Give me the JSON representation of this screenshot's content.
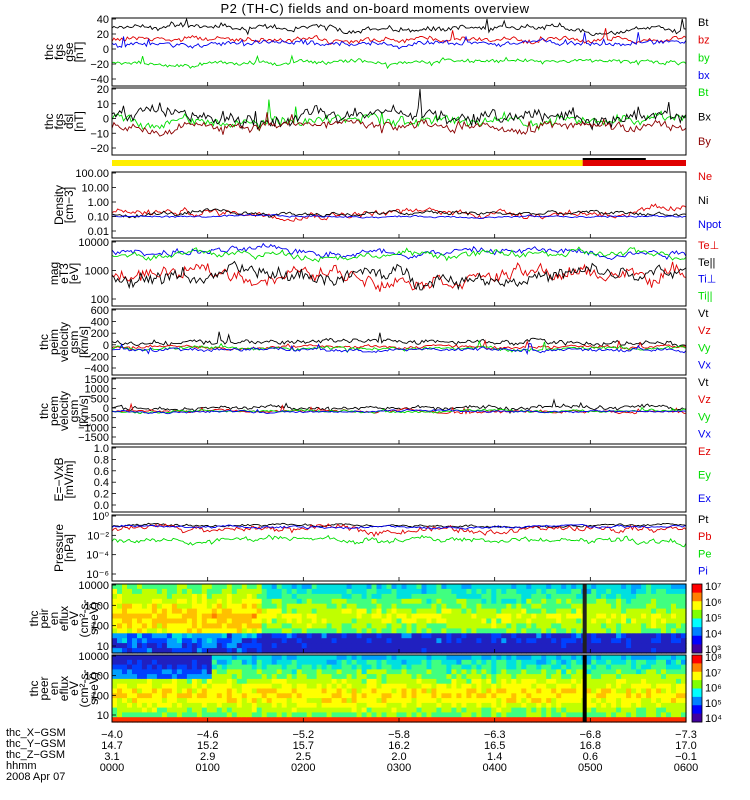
{
  "title": "P2 (TH-C) fields and on-board moments overview",
  "colors": {
    "black": "#000000",
    "red": "#e00000",
    "green": "#00dd00",
    "blue": "#0000ee",
    "darkred": "#8b0000",
    "yellow": "#ffee00"
  },
  "chart_data": [
    {
      "type": "line",
      "panel": "fgs",
      "ylabel": [
        "thc",
        "fgs",
        "gse",
        "[nT]"
      ],
      "ylim": [
        -40,
        40
      ],
      "yticks": [
        "40",
        "20",
        "0",
        "−20",
        "−40"
      ],
      "series": [
        {
          "name": "Bt",
          "color": "#000000",
          "level": 27,
          "amp": 6
        },
        {
          "name": "bz",
          "color": "#e00000",
          "level": 15,
          "amp": 5
        },
        {
          "name": "by",
          "color": "#00dd00",
          "level": -13,
          "amp": 4
        },
        {
          "name": "bx",
          "color": "#0000ee",
          "level": 10,
          "amp": 5
        }
      ]
    },
    {
      "type": "line",
      "panel": "fgs-dsl",
      "ylabel": [
        "thc",
        "fgs",
        "dsl",
        "[nT]"
      ],
      "ylim": [
        -25,
        25
      ],
      "yticks": [
        "20",
        "10",
        "0",
        "−10",
        "−20"
      ],
      "series": [
        {
          "name": "Bt",
          "color": "#00dd00",
          "level": 2,
          "amp": 6
        },
        {
          "name": "Bx",
          "color": "#000000",
          "level": 4,
          "amp": 8
        },
        {
          "name": "By",
          "color": "#8b0000",
          "level": -3,
          "amp": 5
        }
      ]
    },
    {
      "type": "line",
      "panel": "density",
      "ylabel": [
        "Density",
        "[cm−3]"
      ],
      "ylim": [
        0.01,
        100
      ],
      "log": true,
      "yticks": [
        "100.00",
        "10.00",
        "1.00",
        "0.10",
        "0.01"
      ],
      "series": [
        {
          "name": "Ne",
          "color": "#e00000",
          "level": 0.35,
          "amp": 0.4
        },
        {
          "name": "Ni",
          "color": "#000000",
          "level": 0.3,
          "amp": 0.25
        },
        {
          "name": "Npot",
          "color": "#0000ee",
          "level": 0.2,
          "amp": 0.1
        }
      ]
    },
    {
      "type": "line",
      "panel": "temperature",
      "ylabel": [
        "mag",
        "eT3",
        "[eV]"
      ],
      "ylim": [
        30,
        10000
      ],
      "log": true,
      "yticks": [
        "10000",
        "1000",
        "100"
      ],
      "series": [
        {
          "name": "Te⊥",
          "color": "#e00000",
          "level": 500,
          "amp": 0.5
        },
        {
          "name": "Te||",
          "color": "#000000",
          "level": 450,
          "amp": 0.5
        },
        {
          "name": "Ti⊥",
          "color": "#0000ee",
          "level": 4000,
          "amp": 0.25
        },
        {
          "name": "Ti||",
          "color": "#00dd00",
          "level": 3000,
          "amp": 0.25
        }
      ]
    },
    {
      "type": "line",
      "panel": "peim-velocity",
      "ylabel": [
        "thc",
        "peim",
        "velocity",
        "gsm",
        "[km/s]"
      ],
      "ylim": [
        -400,
        600
      ],
      "yticks": [
        "600",
        "400",
        "200",
        "0",
        "−200",
        "−400"
      ],
      "series": [
        {
          "name": "Vt",
          "color": "#000000",
          "level": 100,
          "amp": 60
        },
        {
          "name": "Vz",
          "color": "#e00000",
          "level": 20,
          "amp": 40
        },
        {
          "name": "Vy",
          "color": "#00dd00",
          "level": 0,
          "amp": 40
        },
        {
          "name": "Vx",
          "color": "#0000ee",
          "level": -20,
          "amp": 40
        }
      ]
    },
    {
      "type": "line",
      "panel": "peem-velocity",
      "ylabel": [
        "thc",
        "peem",
        "velocity",
        "gsm",
        "[km/s]"
      ],
      "ylim": [
        -1500,
        1500
      ],
      "yticks": [
        "1500",
        "1000",
        "500",
        "0",
        "−500",
        "−1000",
        "−1500"
      ],
      "series": [
        {
          "name": "Vt",
          "color": "#000000",
          "level": 150,
          "amp": 150
        },
        {
          "name": "Vz",
          "color": "#e00000",
          "level": 0,
          "amp": 100
        },
        {
          "name": "Vy",
          "color": "#00dd00",
          "level": 0,
          "amp": 80
        },
        {
          "name": "Vx",
          "color": "#0000ee",
          "level": 0,
          "amp": 80
        }
      ]
    },
    {
      "type": "line",
      "panel": "efield",
      "ylabel": [
        "E=−VxB",
        "[mV/m]"
      ],
      "ylim": [
        -1,
        1
      ],
      "yticks": [
        "1.0",
        "0.8",
        "0.6",
        "0.4",
        "0.2",
        "0.0"
      ],
      "series": [
        {
          "name": "Ez",
          "color": "#e00000"
        },
        {
          "name": "Ey",
          "color": "#00dd00"
        },
        {
          "name": "Ex",
          "color": "#0000ee"
        }
      ]
    },
    {
      "type": "line",
      "panel": "pressure",
      "ylabel": [
        "Pressure",
        "[nPa]"
      ],
      "ylim": [
        1e-06,
        1
      ],
      "log": true,
      "yticks": [
        "10⁰",
        "10⁻²",
        "10⁻⁴",
        "10⁻⁶"
      ],
      "series": [
        {
          "name": "Pt",
          "color": "#000000",
          "level": 0.1,
          "amp": 0.2
        },
        {
          "name": "Pb",
          "color": "#e00000",
          "level": 0.05,
          "amp": 0.5
        },
        {
          "name": "Pe",
          "color": "#00dd00",
          "level": 0.005,
          "amp": 0.5
        },
        {
          "name": "Pi",
          "color": "#0000ee",
          "level": 0.08,
          "amp": 0.2
        }
      ]
    },
    {
      "type": "heatmap",
      "panel": "peir-spectrogram",
      "ylabel": [
        "thc",
        "peir",
        "en",
        "eflux",
        "eV",
        "(cm²-s-",
        "sr-eV)"
      ],
      "ylim": [
        5,
        25000
      ],
      "log": true,
      "yticks": [
        "10000",
        "1000",
        "100",
        "10"
      ],
      "colorbar": [
        "10⁷",
        "10⁶",
        "10⁵",
        "10⁴",
        "10³"
      ]
    },
    {
      "type": "heatmap",
      "panel": "peer-spectrogram",
      "ylabel": [
        "thc",
        "peer",
        "en",
        "eflux",
        "eV",
        "(cm²-s-",
        "sr-eV)"
      ],
      "ylim": [
        5,
        25000
      ],
      "log": true,
      "yticks": [
        "10000",
        "1000",
        "100",
        "10"
      ],
      "colorbar": [
        "10⁸",
        "10⁷",
        "10⁶",
        "10⁵",
        "10⁴"
      ]
    }
  ],
  "x_axis": {
    "hhmm": [
      "0000",
      "0100",
      "0200",
      "0300",
      "0400",
      "0500",
      "0600"
    ],
    "x_gsm": [
      "−4.0",
      "−4.6",
      "−5.2",
      "−5.8",
      "−6.3",
      "−6.8",
      "−7.3"
    ],
    "y_gsm": [
      "14.7",
      "15.2",
      "15.7",
      "16.2",
      "16.5",
      "16.8",
      "17.0"
    ],
    "z_gsm": [
      "3.1",
      "2.9",
      "2.5",
      "2.0",
      "1.4",
      "0.6",
      "−0.1"
    ]
  },
  "footer": {
    "x_label": "thc_X−GSM",
    "y_label": "thc_Y−GSM",
    "z_label": "thc_Z−GSM",
    "hhmm_label": "hhmm",
    "date": "2008 Apr 07"
  },
  "mode_bar": {
    "yellow_until_hhmm": "0455",
    "red_from_hhmm": "0455"
  }
}
